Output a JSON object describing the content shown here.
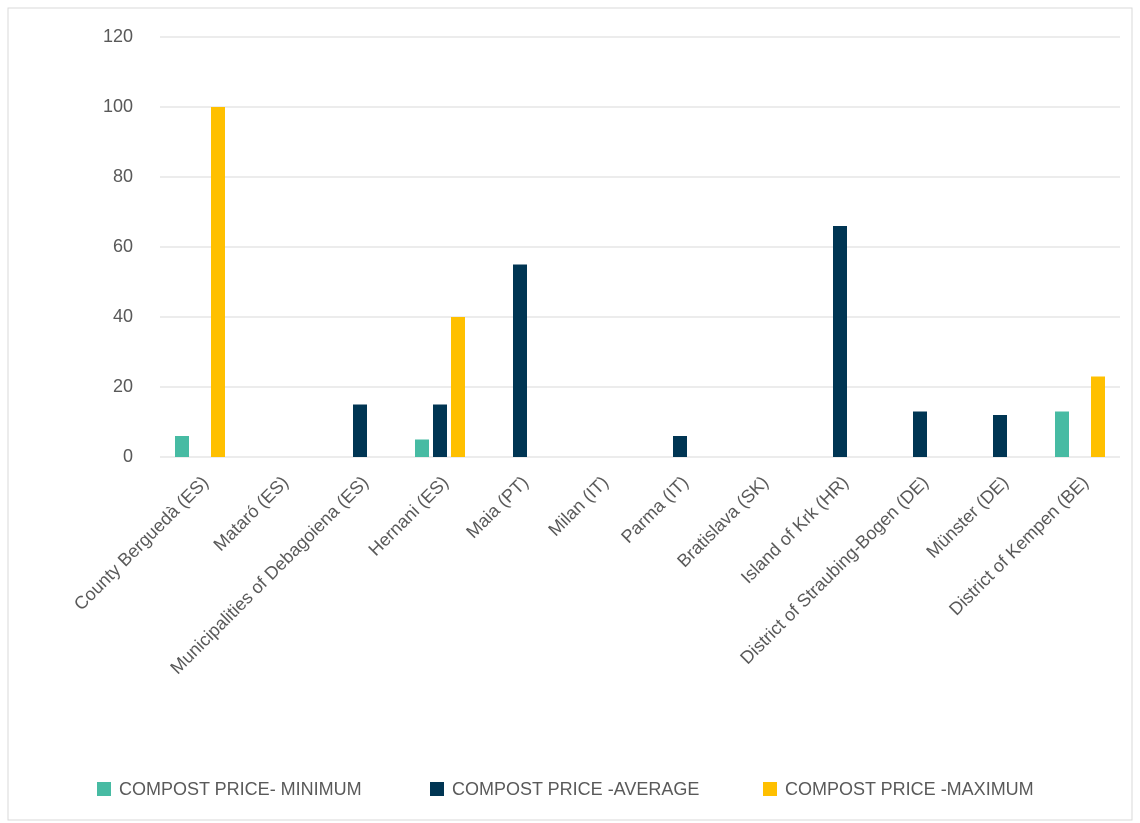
{
  "chart_data": {
    "type": "bar",
    "categories": [
      "County Berguedà (ES)",
      "Mataró (ES)",
      "Municipalities of Debagoiena (ES)",
      "Hernani (ES)",
      "Maia (PT)",
      "Milan (IT)",
      "Parma (IT)",
      "Bratislava (SK)",
      "Island of Krk (HR)",
      "District of Straubing-Bogen (DE)",
      "Münster (DE)",
      "District of Kempen (BE)"
    ],
    "series": [
      {
        "name": "COMPOST PRICE- MINIMUM",
        "color": "#47bba3",
        "values": [
          6,
          null,
          null,
          5,
          null,
          null,
          null,
          null,
          null,
          null,
          null,
          13
        ]
      },
      {
        "name": "COMPOST PRICE -AVERAGE",
        "color": "#003553",
        "values": [
          null,
          null,
          15,
          15,
          55,
          null,
          6,
          null,
          66,
          13,
          12,
          null
        ]
      },
      {
        "name": "COMPOST PRICE -MAXIMUM",
        "color": "#ffc000",
        "values": [
          100,
          null,
          null,
          40,
          null,
          null,
          null,
          null,
          null,
          null,
          null,
          23
        ]
      }
    ],
    "ylim": [
      0,
      120
    ],
    "yticks": [
      0,
      20,
      40,
      60,
      80,
      100,
      120
    ],
    "grid": true,
    "legend": "bottom"
  }
}
